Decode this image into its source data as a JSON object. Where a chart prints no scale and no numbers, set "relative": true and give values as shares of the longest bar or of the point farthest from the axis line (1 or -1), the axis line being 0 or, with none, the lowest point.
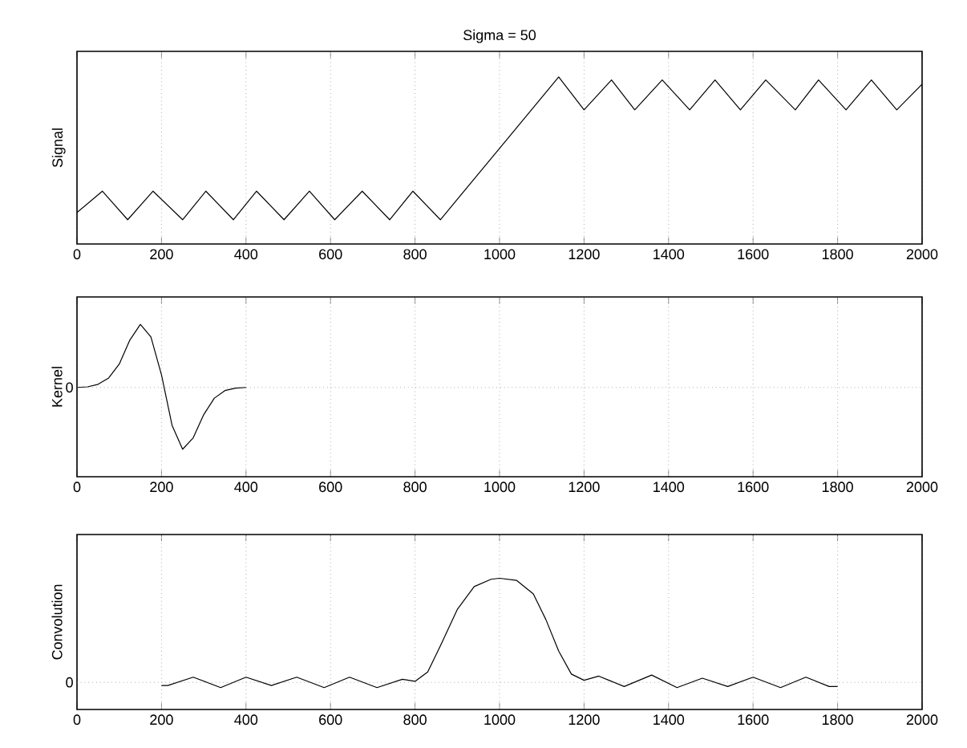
{
  "chart_data": [
    {
      "type": "line",
      "title": "Sigma = 50",
      "ylabel": "Signal",
      "relative": true,
      "grid": true,
      "xlim": [
        0,
        2000
      ],
      "xticks": [
        0,
        200,
        400,
        600,
        800,
        1000,
        1200,
        1400,
        1600,
        1800,
        2000
      ],
      "series": [
        {
          "color": "#000000",
          "x": [
            0,
            60,
            120,
            180,
            250,
            305,
            370,
            425,
            490,
            550,
            610,
            675,
            740,
            795,
            860,
            1000,
            1140,
            1200,
            1265,
            1320,
            1385,
            1450,
            1510,
            1570,
            1630,
            1700,
            1755,
            1820,
            1880,
            1940,
            2000
          ],
          "values": [
            0.05,
            0.2,
            0,
            0.2,
            0,
            0.2,
            0,
            0.2,
            0,
            0.2,
            0,
            0.2,
            0,
            0.2,
            0,
            0.5,
            1,
            0.77,
            0.98,
            0.77,
            0.98,
            0.77,
            0.98,
            0.77,
            0.98,
            0.77,
            0.98,
            0.77,
            0.98,
            0.77,
            0.95
          ]
        }
      ]
    },
    {
      "type": "line",
      "ylabel": "Kernel",
      "relative": true,
      "grid": true,
      "xlim": [
        0,
        2000
      ],
      "xticks": [
        0,
        200,
        400,
        600,
        800,
        1000,
        1200,
        1400,
        1600,
        1800,
        2000
      ],
      "ref_lines": [
        {
          "axis": "y",
          "value": 0,
          "label": "0"
        }
      ],
      "series": [
        {
          "color": "#000000",
          "x": [
            0,
            25,
            50,
            75,
            100,
            125,
            150,
            175,
            200,
            225,
            250,
            275,
            300,
            325,
            350,
            375,
            400
          ],
          "values": [
            0,
            0.01,
            0.05,
            0.15,
            0.37,
            0.75,
            1,
            0.8,
            0.2,
            -0.6,
            -0.98,
            -0.8,
            -0.43,
            -0.17,
            -0.05,
            -0.01,
            0
          ]
        }
      ]
    },
    {
      "type": "line",
      "ylabel": "Convolution",
      "relative": true,
      "grid": true,
      "xlim": [
        0,
        2000
      ],
      "xticks": [
        0,
        200,
        400,
        600,
        800,
        1000,
        1200,
        1400,
        1600,
        1800,
        2000
      ],
      "ref_lines": [
        {
          "axis": "y",
          "value": 0,
          "label": "0"
        }
      ],
      "series": [
        {
          "color": "#000000",
          "x": [
            200,
            215,
            275,
            340,
            400,
            460,
            520,
            585,
            645,
            710,
            770,
            800,
            830,
            860,
            900,
            940,
            980,
            1000,
            1040,
            1080,
            1110,
            1140,
            1170,
            1200,
            1235,
            1295,
            1360,
            1420,
            1480,
            1540,
            1600,
            1665,
            1725,
            1780,
            1800
          ],
          "values": [
            -0.03,
            -0.03,
            0.05,
            -0.05,
            0.05,
            -0.03,
            0.05,
            -0.05,
            0.05,
            -0.05,
            0.03,
            0.01,
            0.1,
            0.35,
            0.7,
            0.92,
            0.99,
            1,
            0.98,
            0.85,
            0.6,
            0.3,
            0.08,
            0.02,
            0.06,
            -0.04,
            0.07,
            -0.05,
            0.04,
            -0.04,
            0.05,
            -0.05,
            0.05,
            -0.04,
            -0.04
          ]
        }
      ]
    }
  ]
}
